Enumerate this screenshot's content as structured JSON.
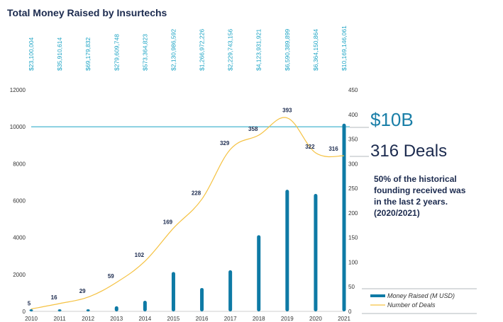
{
  "chart_data": {
    "type": "bar",
    "title": "Total Money Raised by Insurtechs",
    "categories": [
      "2010",
      "2011",
      "2012",
      "2013",
      "2014",
      "2015",
      "2016",
      "2017",
      "2018",
      "2019",
      "2020",
      "2021"
    ],
    "series": [
      {
        "name": "Money Raised (M USD)",
        "type": "bar",
        "axis": "left",
        "color": "#0e7aa5",
        "values": [
          23.1,
          35.9,
          69.2,
          279.6,
          573.4,
          2131.0,
          1267.0,
          2229.7,
          4123.9,
          6590.4,
          6364.2,
          10169.1
        ]
      },
      {
        "name": "Number of Deals",
        "type": "line",
        "axis": "right",
        "color": "#f5c242",
        "values": [
          5,
          16,
          29,
          59,
          102,
          169,
          228,
          329,
          358,
          393,
          322,
          316
        ]
      }
    ],
    "top_value_labels": [
      "$23,100,004",
      "$35,910,614",
      "$69,179,832",
      "$279,609,748",
      "$573,364,823",
      "$2,130,986,592",
      "$1,266,972,226",
      "$2,229,743,156",
      "$4,123,931,921",
      "$6,590,389,899",
      "$6,364,150,864",
      "$10,169,146,061"
    ],
    "y_left": {
      "ticks": [
        "0",
        "2000",
        "4000",
        "6000",
        "8000",
        "10000",
        "12000"
      ],
      "min": 0,
      "max": 12000
    },
    "y_right": {
      "ticks": [
        "0",
        "50",
        "100",
        "150",
        "200",
        "250",
        "300",
        "350",
        "400",
        "450"
      ],
      "min": 0,
      "max": 450
    },
    "reference_line": {
      "axis": "left",
      "value": 10000,
      "color": "#1aa3c4"
    },
    "legend_position": "bottom-right"
  },
  "callouts": {
    "money": "$10B",
    "deals": "316 Deals",
    "note_lines": [
      "50% of the historical",
      "founding received was",
      "in the last 2 years.",
      "(2020/2021)"
    ]
  }
}
